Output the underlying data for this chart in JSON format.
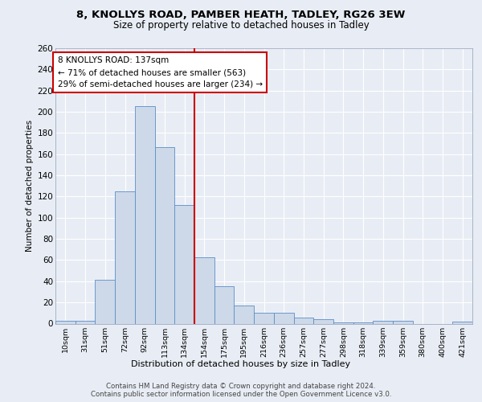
{
  "title1": "8, KNOLLYS ROAD, PAMBER HEATH, TADLEY, RG26 3EW",
  "title2": "Size of property relative to detached houses in Tadley",
  "xlabel": "Distribution of detached houses by size in Tadley",
  "ylabel": "Number of detached properties",
  "categories": [
    "10sqm",
    "31sqm",
    "51sqm",
    "72sqm",
    "92sqm",
    "113sqm",
    "134sqm",
    "154sqm",
    "175sqm",
    "195sqm",
    "216sqm",
    "236sqm",
    "257sqm",
    "277sqm",
    "298sqm",
    "318sqm",
    "339sqm",
    "359sqm",
    "380sqm",
    "400sqm",
    "421sqm"
  ],
  "values": [
    3,
    3,
    41,
    125,
    205,
    167,
    112,
    63,
    35,
    17,
    10,
    10,
    6,
    4,
    1,
    1,
    3,
    3,
    0,
    0,
    2
  ],
  "bar_color": "#cdd9e8",
  "bar_edge_color": "#5b8dc8",
  "property_bin_index": 6,
  "vline_color": "#cc0000",
  "annotation_line1": "8 KNOLLYS ROAD: 137sqm",
  "annotation_line2": "← 71% of detached houses are smaller (563)",
  "annotation_line3": "29% of semi-detached houses are larger (234) →",
  "annotation_box_color": "#ffffff",
  "annotation_box_edge": "#cc0000",
  "ylim": [
    0,
    260
  ],
  "yticks": [
    0,
    20,
    40,
    60,
    80,
    100,
    120,
    140,
    160,
    180,
    200,
    220,
    240,
    260
  ],
  "footer1": "Contains HM Land Registry data © Crown copyright and database right 2024.",
  "footer2": "Contains public sector information licensed under the Open Government Licence v3.0.",
  "bg_color": "#e8edf5",
  "plot_bg_color": "#e8edf5",
  "grid_color": "#ffffff"
}
